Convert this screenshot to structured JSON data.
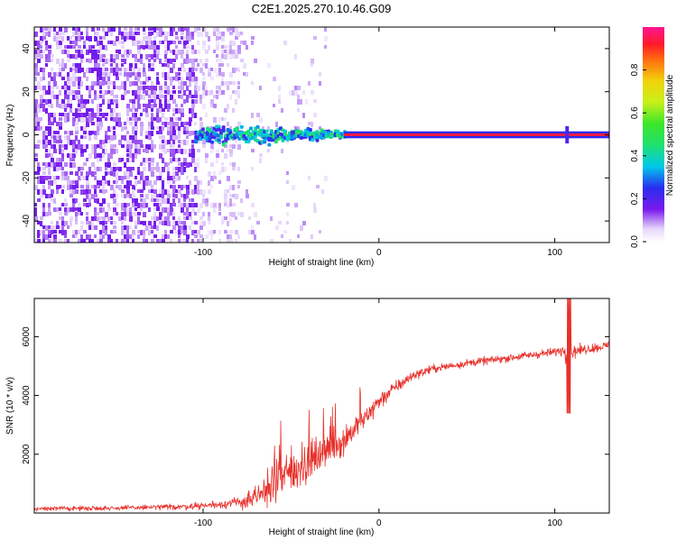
{
  "title": "C2E1.2025.270.10.46.G09",
  "chart_data": [
    {
      "type": "heatmap",
      "name": "spectrogram",
      "xlabel": "Height of straight line (km)",
      "ylabel": "Frequency (Hz)",
      "xlim": [
        -196,
        131
      ],
      "ylim": [
        -50,
        50
      ],
      "xticks": [
        -100,
        0,
        100
      ],
      "yticks": [
        -40,
        -20,
        0,
        20,
        40
      ],
      "colorbar": {
        "label": "Normalized spectral amplitude",
        "range": [
          0,
          1
        ],
        "ticks": [
          0.0,
          0.2,
          0.4,
          0.6,
          0.8
        ],
        "tick_labels": [
          "0.0",
          "0.2",
          "0.4",
          "0.6",
          "0.8"
        ]
      },
      "features": {
        "noise_region_x": [
          -196,
          -80
        ],
        "dispersed_band_x": [
          -105,
          -20
        ],
        "dispersed_band_halfwidth_hz": 6,
        "carrier_line_x": [
          -20,
          131
        ],
        "carrier_frequency_hz": 0,
        "carrier_amplitude": 0.95,
        "spur_x": 107
      }
    },
    {
      "type": "line",
      "name": "snr",
      "xlabel": "Height of straight line (km)",
      "ylabel": "SNR (10 * v/v)",
      "xlim": [
        -196,
        131
      ],
      "ylim": [
        0,
        7300
      ],
      "xticks": [
        -100,
        0,
        100
      ],
      "yticks": [
        2000,
        4000,
        6000
      ],
      "series": [
        {
          "name": "SNR",
          "color": "#e8302a",
          "x": [
            -196,
            -150,
            -110,
            -90,
            -80,
            -70,
            -60,
            -50,
            -40,
            -30,
            -20,
            -10,
            0,
            10,
            20,
            30,
            50,
            70,
            90,
            100,
            105,
            108,
            110,
            115,
            131
          ],
          "y": [
            150,
            170,
            220,
            300,
            360,
            480,
            1000,
            1400,
            1700,
            2100,
            2500,
            3100,
            3800,
            4300,
            4700,
            4900,
            5100,
            5250,
            5400,
            5480,
            5550,
            5600,
            5500,
            5550,
            5700
          ]
        }
      ],
      "noise_amplitude": [
        80,
        90,
        120,
        160,
        200,
        500,
        900,
        900,
        800,
        700,
        600,
        500,
        350,
        250,
        180,
        160,
        150,
        150,
        150,
        160,
        200,
        900,
        300,
        180,
        180
      ],
      "spike": {
        "x": 108,
        "y_max": 7300,
        "y_min": 3400
      }
    }
  ]
}
